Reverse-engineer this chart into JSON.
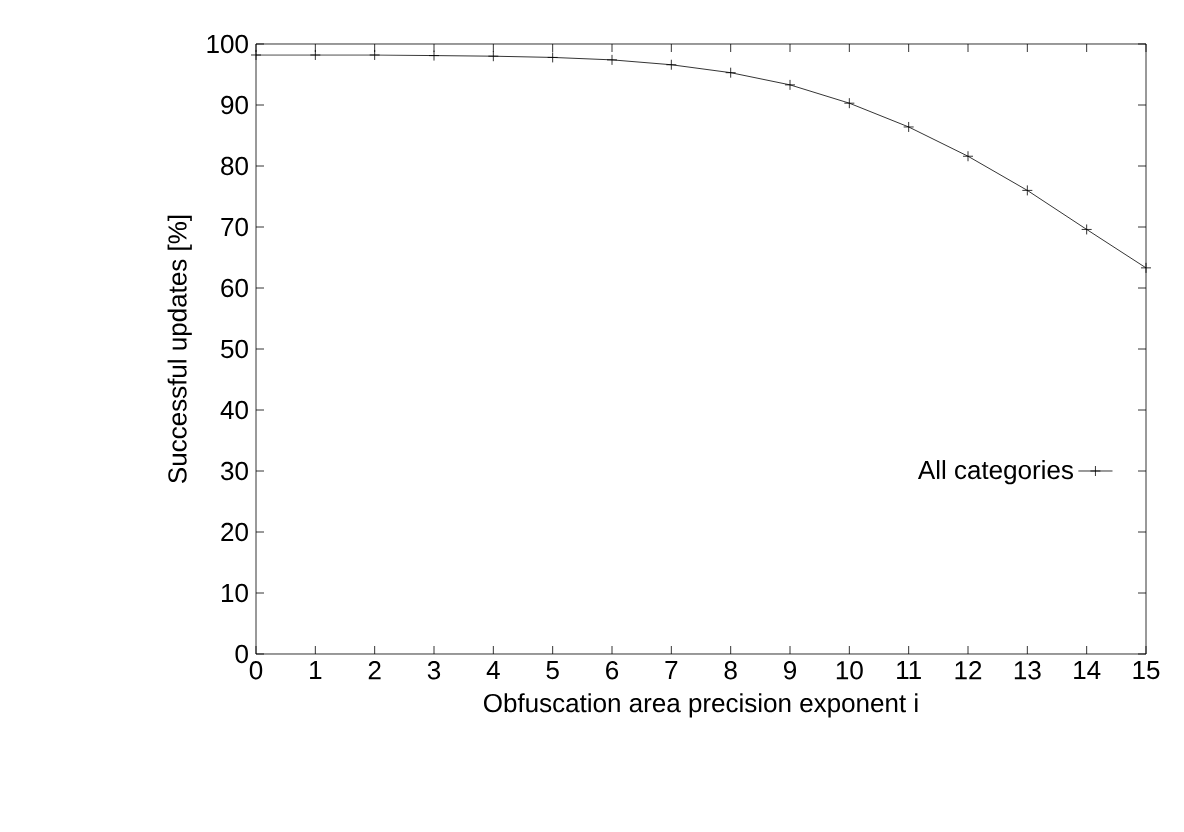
{
  "chart_data": {
    "type": "line",
    "xlabel": "Obfuscation area precision exponent i",
    "ylabel": "Successful updates [%]",
    "x": [
      0,
      1,
      2,
      3,
      4,
      5,
      6,
      7,
      8,
      9,
      10,
      11,
      12,
      13,
      14,
      15
    ],
    "series": [
      {
        "name": "All categories",
        "color": "#000000",
        "values": [
          98.2,
          98.2,
          98.2,
          98.1,
          98.0,
          97.8,
          97.4,
          96.6,
          95.3,
          93.3,
          90.3,
          86.4,
          81.6,
          76.0,
          69.6,
          63.3
        ]
      }
    ],
    "xlim": [
      0,
      15
    ],
    "xticks": [
      0,
      1,
      2,
      3,
      4,
      5,
      6,
      7,
      8,
      9,
      10,
      11,
      12,
      13,
      14,
      15
    ],
    "ylim": [
      0,
      100
    ],
    "yticks": [
      0,
      10,
      20,
      30,
      40,
      50,
      60,
      70,
      80,
      90,
      100
    ],
    "grid": false,
    "legend": "right",
    "marker": "cross",
    "line_style": "solid"
  }
}
